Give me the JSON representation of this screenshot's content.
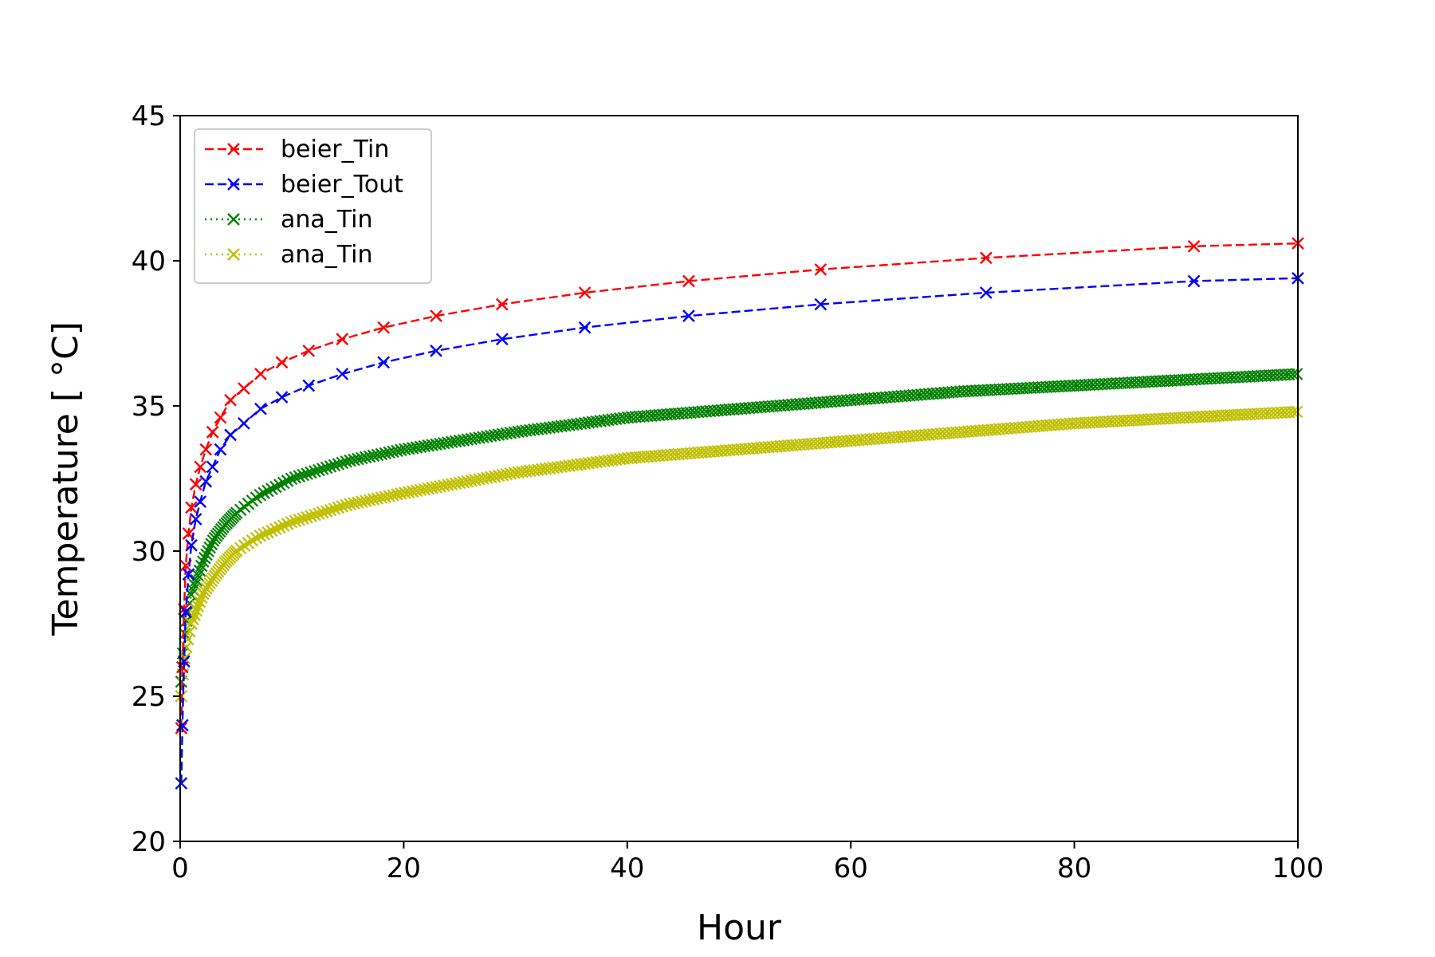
{
  "chart_data": {
    "type": "line",
    "title": "",
    "xlabel": "Hour",
    "ylabel": "Temperature [ $^\\circ$C]",
    "ylabel_display": "Temperature [ °C]",
    "xlim": [
      0,
      100
    ],
    "ylim": [
      20,
      45
    ],
    "xticks": [
      0,
      20,
      40,
      60,
      80,
      100
    ],
    "yticks": [
      20,
      25,
      30,
      35,
      40,
      45
    ],
    "xtick_labels": [
      "0",
      "20",
      "40",
      "60",
      "80",
      "100"
    ],
    "ytick_labels": [
      "20",
      "25",
      "30",
      "35",
      "40",
      "45"
    ],
    "grid": false,
    "legend_position": "upper-left",
    "series": [
      {
        "name": "beier_Tin",
        "color": "#ff0000",
        "linestyle": "dashed",
        "marker": "x",
        "x": [
          0.1,
          0.2,
          0.35,
          0.5,
          0.75,
          1.0,
          1.4,
          1.8,
          2.3,
          2.9,
          3.6,
          4.5,
          5.7,
          7.2,
          9.1,
          11.5,
          14.5,
          18.2,
          22.9,
          28.8,
          36.2,
          45.5,
          57.3,
          72.1,
          90.7,
          100
        ],
        "y": [
          23.9,
          26.0,
          28.0,
          29.5,
          30.6,
          31.5,
          32.3,
          32.9,
          33.5,
          34.1,
          34.6,
          35.2,
          35.6,
          36.1,
          36.5,
          36.9,
          37.3,
          37.7,
          38.1,
          38.5,
          38.9,
          39.3,
          39.7,
          40.1,
          40.5,
          40.6
        ]
      },
      {
        "name": "beier_Tout",
        "color": "#0000ff",
        "linestyle": "dashed",
        "marker": "x",
        "x": [
          0.1,
          0.2,
          0.35,
          0.5,
          0.75,
          1.0,
          1.4,
          1.8,
          2.3,
          2.9,
          3.6,
          4.5,
          5.7,
          7.2,
          9.1,
          11.5,
          14.5,
          18.2,
          22.9,
          28.8,
          36.2,
          45.5,
          57.3,
          72.1,
          90.7,
          100
        ],
        "y": [
          22.0,
          24.0,
          26.2,
          27.9,
          29.2,
          30.2,
          31.1,
          31.7,
          32.4,
          32.9,
          33.5,
          34.0,
          34.4,
          34.9,
          35.3,
          35.7,
          36.1,
          36.5,
          36.9,
          37.3,
          37.7,
          38.1,
          38.5,
          38.9,
          39.3,
          39.4
        ]
      },
      {
        "name": "ana_Tin",
        "color": "#008000",
        "linestyle": "dotted",
        "marker": "x",
        "x": [
          0.1,
          0.3,
          0.5,
          1,
          2,
          3,
          4,
          5,
          7,
          10,
          15,
          20,
          30,
          40,
          50,
          60,
          70,
          80,
          90,
          100
        ],
        "y": [
          25.5,
          26.8,
          27.5,
          28.5,
          29.6,
          30.4,
          30.9,
          31.3,
          31.9,
          32.5,
          33.1,
          33.5,
          34.1,
          34.6,
          34.9,
          35.2,
          35.5,
          35.7,
          35.9,
          36.1
        ]
      },
      {
        "name": "ana_Tin",
        "color": "#bfbf00",
        "linestyle": "dotted",
        "marker": "x",
        "x": [
          0.1,
          0.3,
          0.5,
          1,
          2,
          3,
          4,
          5,
          7,
          10,
          15,
          20,
          30,
          40,
          50,
          60,
          70,
          80,
          90,
          100
        ],
        "y": [
          25.0,
          26.0,
          26.6,
          27.5,
          28.5,
          29.1,
          29.6,
          30.0,
          30.5,
          31.0,
          31.6,
          32.0,
          32.7,
          33.2,
          33.5,
          33.8,
          34.1,
          34.4,
          34.6,
          34.8
        ]
      }
    ]
  }
}
